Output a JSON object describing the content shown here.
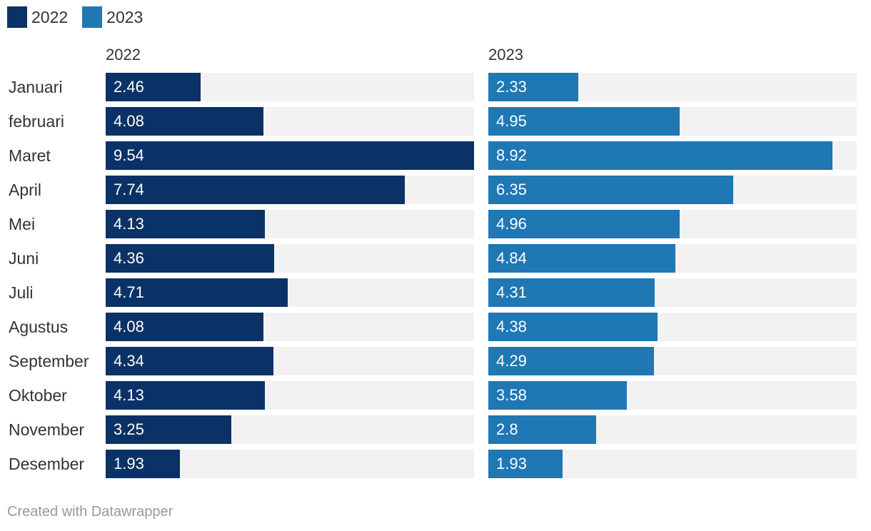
{
  "legend": [
    {
      "label": "2022",
      "color": "#0b3266"
    },
    {
      "label": "2023",
      "color": "#1f77b4"
    }
  ],
  "credit": "Created with Datawrapper",
  "chart_data": {
    "type": "bar",
    "orientation": "horizontal",
    "layout": "small-multiples",
    "categories": [
      "Januari",
      "februari",
      "Maret",
      "April",
      "Mei",
      "Juni",
      "Juli",
      "Agustus",
      "September",
      "Oktober",
      "November",
      "Desember"
    ],
    "xlim": [
      0,
      9.54
    ],
    "series": [
      {
        "name": "2022",
        "color": "#0b3266",
        "values": [
          2.46,
          4.08,
          9.54,
          7.74,
          4.13,
          4.36,
          4.71,
          4.08,
          4.34,
          4.13,
          3.25,
          1.93
        ]
      },
      {
        "name": "2023",
        "color": "#1f77b4",
        "values": [
          2.33,
          4.95,
          8.92,
          6.35,
          4.96,
          4.84,
          4.31,
          4.38,
          4.29,
          3.58,
          2.8,
          1.93
        ]
      }
    ],
    "value_labels": "inside-bar",
    "legend_position": "top-left",
    "grid": false
  }
}
